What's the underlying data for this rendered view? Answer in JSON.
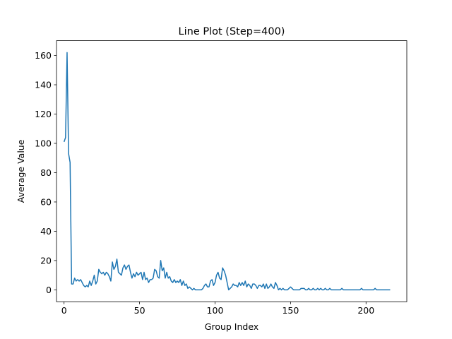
{
  "chart_data": {
    "type": "line",
    "title": "Line Plot (Step=400)",
    "xlabel": "Group Index",
    "ylabel": "Average Value",
    "xlim": [
      -5,
      227
    ],
    "ylim": [
      -8.1,
      170.1
    ],
    "xticks": [
      0,
      50,
      100,
      150,
      200
    ],
    "yticks": [
      0,
      20,
      40,
      60,
      80,
      100,
      120,
      140,
      160
    ],
    "grid": false,
    "line_color": "#1f77b4",
    "series": [
      {
        "x": [
          0,
          1,
          2,
          3,
          4,
          5,
          6,
          7,
          8,
          9,
          10,
          11,
          12,
          13,
          14,
          15,
          16,
          17,
          18,
          19,
          20,
          21,
          22,
          23,
          24,
          25,
          26,
          27,
          28,
          29,
          30,
          31,
          32,
          33,
          34,
          35,
          36,
          37,
          38,
          39,
          40,
          41,
          42,
          43,
          44,
          45,
          46,
          47,
          48,
          49,
          50,
          51,
          52,
          53,
          54,
          55,
          56,
          57,
          58,
          59,
          60,
          61,
          62,
          63,
          64,
          65,
          66,
          67,
          68,
          69,
          70,
          71,
          72,
          73,
          74,
          75,
          76,
          77,
          78,
          79,
          80,
          81,
          82,
          83,
          84,
          85,
          86,
          87,
          88,
          89,
          90,
          91,
          92,
          93,
          94,
          95,
          96,
          97,
          98,
          99,
          100,
          101,
          102,
          103,
          104,
          105,
          106,
          107,
          108,
          109,
          110,
          111,
          112,
          113,
          114,
          115,
          116,
          117,
          118,
          119,
          120,
          121,
          122,
          123,
          124,
          125,
          126,
          127,
          128,
          129,
          130,
          131,
          132,
          133,
          134,
          135,
          136,
          137,
          138,
          139,
          140,
          141,
          142,
          143,
          144,
          145,
          146,
          147,
          148,
          149,
          150,
          151,
          152,
          153,
          154,
          155,
          156,
          157,
          158,
          159,
          160,
          161,
          162,
          163,
          164,
          165,
          166,
          167,
          168,
          169,
          170,
          171,
          172,
          173,
          174,
          175,
          176,
          177,
          178,
          179,
          180,
          181,
          182,
          183,
          184,
          185,
          186,
          187,
          188,
          189,
          190,
          191,
          192,
          193,
          194,
          195,
          196,
          197,
          198,
          199,
          200,
          201,
          202,
          203,
          204,
          205,
          206,
          207,
          208,
          209,
          210,
          211,
          212,
          213,
          214,
          215,
          216
        ],
        "values": [
          101,
          104,
          162,
          93,
          87,
          4,
          4,
          8,
          6,
          7,
          6,
          7,
          5,
          3,
          2,
          3,
          2,
          6,
          3,
          6,
          10,
          4,
          6,
          14,
          12,
          11,
          12,
          10,
          12,
          11,
          9,
          6,
          19,
          14,
          16,
          21,
          12,
          11,
          10,
          15,
          17,
          14,
          16,
          17,
          12,
          8,
          11,
          9,
          12,
          10,
          11,
          12,
          7,
          12,
          7,
          8,
          5,
          7,
          7,
          8,
          14,
          13,
          9,
          8,
          20,
          13,
          15,
          8,
          12,
          8,
          9,
          6,
          5,
          7,
          5,
          6,
          5,
          7,
          3,
          6,
          3,
          4,
          1,
          2,
          1,
          0,
          1,
          0,
          0,
          0,
          0,
          0,
          1,
          3,
          4,
          2,
          2,
          6,
          7,
          3,
          5,
          10,
          12,
          8,
          7,
          15,
          13,
          10,
          5,
          0,
          1,
          2,
          4,
          3,
          3,
          2,
          5,
          3,
          5,
          3,
          6,
          2,
          4,
          3,
          1,
          4,
          4,
          3,
          1,
          3,
          3,
          2,
          4,
          1,
          4,
          1,
          2,
          4,
          2,
          1,
          5,
          3,
          0,
          1,
          0,
          1,
          0,
          0,
          0,
          1,
          2,
          1,
          0,
          0,
          0,
          0,
          0,
          1,
          1,
          1,
          0,
          0,
          1,
          0,
          0,
          1,
          0,
          0,
          1,
          0,
          1,
          0,
          0,
          1,
          0,
          0,
          1,
          0,
          0,
          0,
          0,
          0,
          0,
          0,
          1,
          0,
          0,
          0,
          0,
          0,
          0,
          0,
          0,
          0,
          0,
          0,
          0,
          1,
          0,
          0,
          0,
          0,
          0,
          0,
          0,
          0,
          1,
          0,
          0,
          0,
          0,
          0,
          0,
          0,
          0,
          0,
          0
        ]
      }
    ]
  }
}
